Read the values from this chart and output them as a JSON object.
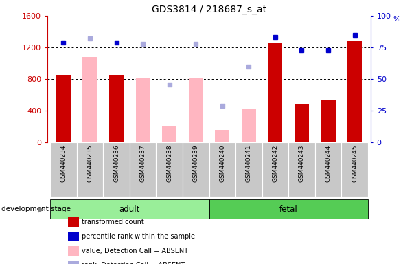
{
  "title": "GDS3814 / 218687_s_at",
  "categories": [
    "GSM440234",
    "GSM440235",
    "GSM440236",
    "GSM440237",
    "GSM440238",
    "GSM440239",
    "GSM440240",
    "GSM440241",
    "GSM440242",
    "GSM440243",
    "GSM440244",
    "GSM440245"
  ],
  "red_bars": [
    850,
    null,
    850,
    null,
    null,
    null,
    null,
    null,
    1260,
    490,
    540,
    1290
  ],
  "pink_bars": [
    null,
    1080,
    null,
    810,
    200,
    820,
    160,
    430,
    null,
    null,
    null,
    null
  ],
  "blue_dots": [
    79,
    null,
    79,
    null,
    null,
    null,
    null,
    null,
    83,
    73,
    73,
    85
  ],
  "lavender_dots": [
    null,
    82,
    null,
    78,
    46,
    78,
    29,
    60,
    null,
    null,
    null,
    null
  ],
  "adult_indices": [
    0,
    1,
    2,
    3,
    4,
    5
  ],
  "fetal_indices": [
    6,
    7,
    8,
    9,
    10,
    11
  ],
  "ylim_left": [
    0,
    1600
  ],
  "ylim_right": [
    0,
    100
  ],
  "yticks_left": [
    0,
    400,
    800,
    1200,
    1600
  ],
  "yticks_right": [
    0,
    25,
    50,
    75,
    100
  ],
  "adult_color": "#99EE99",
  "fetal_color": "#55CC55",
  "bar_width": 0.55,
  "red_color": "#CC0000",
  "pink_color": "#FFB6C1",
  "blue_color": "#0000CC",
  "lavender_color": "#AAAADD",
  "xlabel_bg": "#C8C8C8",
  "legend_labels": [
    "transformed count",
    "percentile rank within the sample",
    "value, Detection Call = ABSENT",
    "rank, Detection Call = ABSENT"
  ],
  "legend_colors": [
    "#CC0000",
    "#0000CC",
    "#FFB6C1",
    "#AAAADD"
  ],
  "group_label": "development stage",
  "adult_label": "adult",
  "fetal_label": "fetal"
}
